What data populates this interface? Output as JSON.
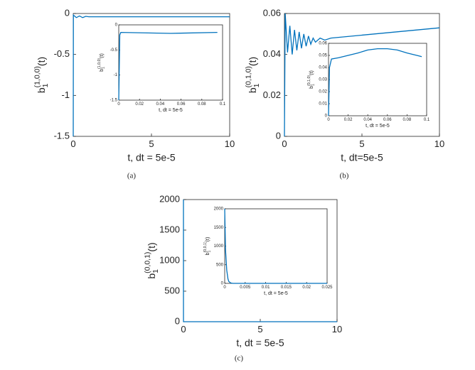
{
  "chart_data": [
    {
      "type": "line",
      "caption": "(a)",
      "xlabel": "t, dt = 5e-5",
      "ylabel": {
        "base": "b",
        "sub": "1",
        "sup": "(1,0,0)",
        "tail": "(t)"
      },
      "xlim": [
        0,
        10
      ],
      "ylim": [
        -1.5,
        0
      ],
      "xticks": [
        0,
        5,
        10
      ],
      "yticks": [
        0,
        -0.5,
        -1,
        -1.5
      ],
      "color": "#0072bd",
      "x": [
        0,
        0.01,
        0.2,
        0.4,
        0.6,
        0.8,
        1,
        2,
        5,
        10
      ],
      "values": [
        -1.5,
        -0.02,
        -0.05,
        -0.03,
        -0.05,
        -0.035,
        -0.04,
        -0.04,
        -0.04,
        -0.04
      ]
    },
    {
      "type": "line",
      "xlabel": "t, dt = 5e-5",
      "ylabel": {
        "base": "b",
        "sub": "1",
        "sup": "(1,0,0)",
        "tail": "(t)"
      },
      "xlim": [
        0,
        0.1
      ],
      "ylim": [
        -1.5,
        0
      ],
      "xticks": [
        0,
        0.02,
        0.04,
        0.06,
        0.08,
        0.1
      ],
      "yticks": [
        0,
        -0.5,
        -1,
        -1.5
      ],
      "color": "#0072bd",
      "x": [
        0,
        0.001,
        0.002,
        0.05,
        0.095
      ],
      "values": [
        -1.5,
        -0.2,
        -0.15,
        -0.17,
        -0.15
      ]
    },
    {
      "type": "line",
      "caption": "(b)",
      "xlabel": "t, dt=5e-5",
      "ylabel": {
        "base": "b",
        "sub": "1",
        "sup": "(0,1,0)",
        "tail": "(t)"
      },
      "xlim": [
        0,
        10
      ],
      "ylim": [
        0,
        0.06
      ],
      "xticks": [
        0,
        5,
        10
      ],
      "yticks": [
        0,
        0.02,
        0.04,
        0.06
      ],
      "color": "#0072bd",
      "x": [
        0,
        0.05,
        0.2,
        0.35,
        0.5,
        0.65,
        0.8,
        0.95,
        1.1,
        1.25,
        1.4,
        1.55,
        1.7,
        1.85,
        2,
        2.3,
        2.6,
        3,
        10
      ],
      "values": [
        0,
        0.06,
        0.041,
        0.054,
        0.04,
        0.052,
        0.042,
        0.051,
        0.043,
        0.05,
        0.044,
        0.049,
        0.045,
        0.048,
        0.046,
        0.048,
        0.047,
        0.048,
        0.053
      ]
    },
    {
      "type": "line",
      "xlabel": "t, dt = 5e-5",
      "ylabel": {
        "base": "b",
        "sub": "1",
        "sup": "(0,1,0)",
        "tail": "(t)"
      },
      "xlim": [
        0,
        0.1
      ],
      "ylim": [
        0,
        0.06
      ],
      "xticks": [
        0,
        0.02,
        0.04,
        0.06,
        0.08,
        0.1
      ],
      "yticks": [
        0,
        0.01,
        0.02,
        0.03,
        0.04,
        0.05,
        0.06
      ],
      "color": "#0072bd",
      "x": [
        0,
        0.001,
        0.003,
        0.01,
        0.02,
        0.03,
        0.04,
        0.05,
        0.06,
        0.07,
        0.08,
        0.09,
        0.095
      ],
      "values": [
        0,
        0.04,
        0.047,
        0.048,
        0.05,
        0.052,
        0.0545,
        0.0555,
        0.0555,
        0.0545,
        0.052,
        0.05,
        0.049
      ]
    },
    {
      "type": "line",
      "caption": "(c)",
      "xlabel": "t, dt = 5e-5",
      "ylabel": {
        "base": "b",
        "sub": "1",
        "sup": "(0,0,1)",
        "tail": "(t)"
      },
      "xlim": [
        0,
        10
      ],
      "ylim": [
        0,
        2000
      ],
      "xticks": [
        0,
        5,
        10
      ],
      "yticks": [
        0,
        500,
        1000,
        1500,
        2000
      ],
      "color": "#0072bd",
      "x": [
        0,
        0.001,
        0.01,
        10
      ],
      "values": [
        2000,
        0,
        0,
        0
      ]
    },
    {
      "type": "line",
      "xlabel": "t, dt = 5e-5",
      "ylabel": {
        "base": "b",
        "sub": "1",
        "sup": "(0,0,1)",
        "tail": "(t)"
      },
      "xlim": [
        0,
        0.025
      ],
      "ylim": [
        0,
        2000
      ],
      "xticks": [
        0,
        0.005,
        0.01,
        0.015,
        0.02,
        0.025
      ],
      "yticks": [
        0,
        500,
        1000,
        1500,
        2000
      ],
      "color": "#0072bd",
      "x": [
        0,
        0.0002,
        0.0005,
        0.0008,
        0.001,
        0.0015,
        0.002,
        0.025
      ],
      "values": [
        2000,
        900,
        350,
        120,
        50,
        10,
        0,
        0
      ]
    }
  ]
}
